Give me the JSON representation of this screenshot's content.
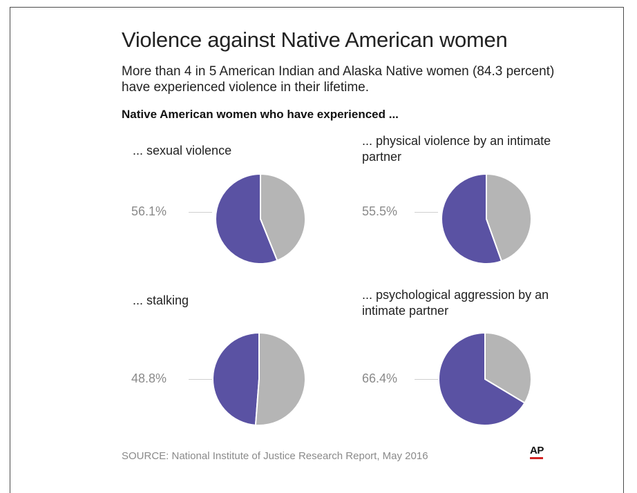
{
  "title": "Violence against Native American women",
  "subtitle": "More than 4 in 5 American Indian and Alaska Native women (84.3 percent) have experienced violence in their lifetime.",
  "section_heading": "Native American women who have experienced ...",
  "source": "SOURCE: National Institute of Justice Research Report, May 2016",
  "logo": "AP",
  "colors": {
    "accent": "#5a52a3",
    "remainder": "#b5b5b5",
    "logo_bar": "#d32222"
  },
  "chart_data": [
    {
      "type": "pie",
      "label": "... sexual violence",
      "value_label": "56.1%",
      "slices": [
        {
          "value": 56.1,
          "color": "#5a52a3"
        },
        {
          "value": 43.9,
          "color": "#b5b5b5"
        }
      ]
    },
    {
      "type": "pie",
      "label": "... physical violence by an intimate partner",
      "value_label": "55.5%",
      "slices": [
        {
          "value": 55.5,
          "color": "#5a52a3"
        },
        {
          "value": 44.5,
          "color": "#b5b5b5"
        }
      ]
    },
    {
      "type": "pie",
      "label": "... stalking",
      "value_label": "48.8%",
      "slices": [
        {
          "value": 48.8,
          "color": "#5a52a3"
        },
        {
          "value": 51.2,
          "color": "#b5b5b5"
        }
      ]
    },
    {
      "type": "pie",
      "label": "... psychological aggression by an intimate partner",
      "value_label": "66.4%",
      "slices": [
        {
          "value": 66.4,
          "color": "#5a52a3"
        },
        {
          "value": 33.6,
          "color": "#b5b5b5"
        }
      ]
    }
  ]
}
